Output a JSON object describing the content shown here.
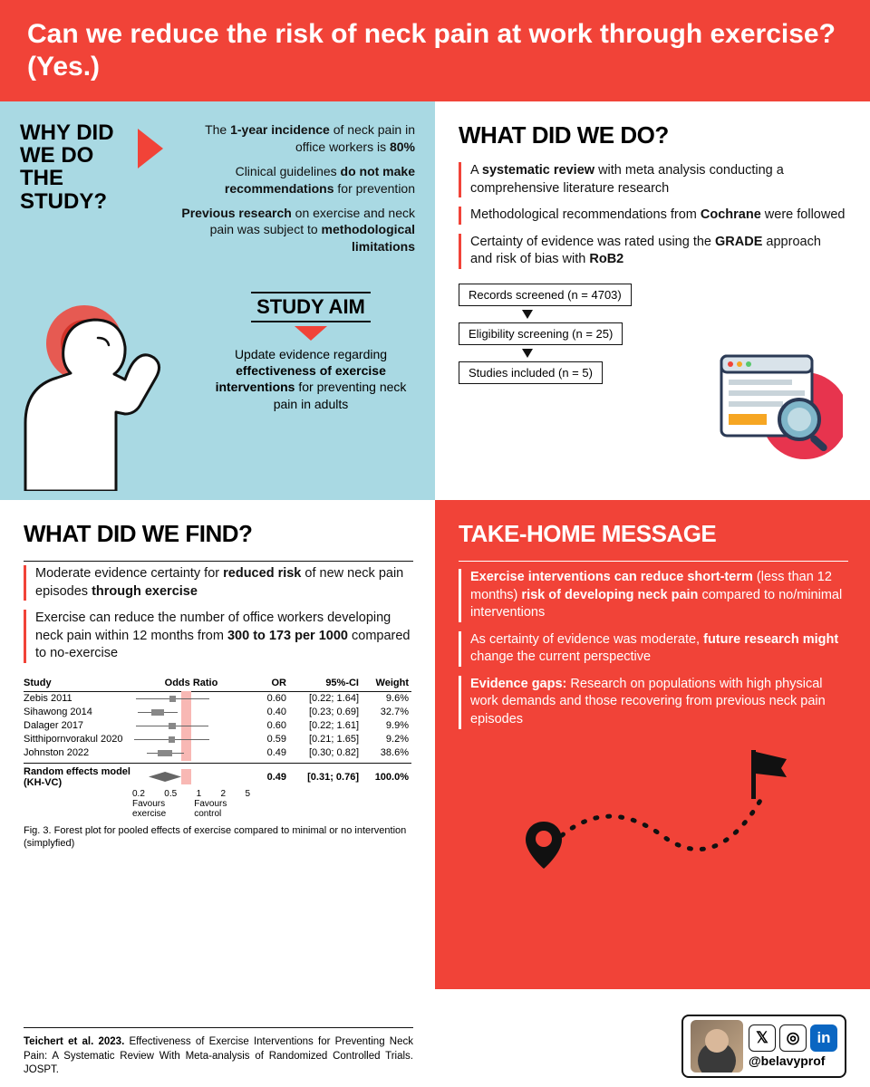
{
  "colors": {
    "red": "#f14338",
    "cyan": "#a9d9e3",
    "white": "#ffffff",
    "pink_band": "#f8b8b4",
    "text": "#111111"
  },
  "header": {
    "title": "Can we reduce the risk of neck pain at work through exercise? (Yes.)"
  },
  "q1": {
    "title": "WHY DID WE DO THE STUDY?",
    "facts_html": [
      "The <b>1-year incidence</b> of neck pain in office workers is <b>80%</b>",
      "Clinical guidelines <b>do not make recommendations</b> for prevention",
      "<b>Previous research</b> on exercise and neck pain was subject to <b>methodological limitations</b>"
    ],
    "aim_title": "STUDY AIM",
    "aim_html": "Update evidence regarding <b>effectiveness of exercise interventions</b> for preventing neck pain in adults"
  },
  "q2": {
    "title": "WHAT DID WE DO?",
    "points_html": [
      "A <b>systematic review</b> with meta analysis conducting a comprehensive literature research",
      "Methodological recommendations from <b>Cochrane</b> were followed",
      "Certainty of evidence was rated using the <b>GRADE</b> approach and risk of bias with <b>RoB2</b>"
    ],
    "flow": [
      "Records screened (n = 4703)",
      "Eligibility screening (n = 25)",
      "Studies included (n = 5)"
    ]
  },
  "q3": {
    "title": "WHAT DID WE FIND?",
    "points_html": [
      "Moderate evidence certainty for <b>reduced risk</b> of new neck pain episodes <b>through exercise</b>",
      "Exercise can reduce the number of office workers developing neck pain within 12 months from <b>300 to 173 per 1000</b> compared to no-exercise"
    ],
    "forest": {
      "columns": [
        "Study",
        "Odds Ratio",
        "OR",
        "95%-CI",
        "Weight"
      ],
      "band_or_range": [
        0.76,
        1.0
      ],
      "axis_ticks": [
        "0.2",
        "0.5",
        "1",
        "2",
        "5"
      ],
      "axis_labels": [
        "Favours exercise",
        "Favours control"
      ],
      "rows": [
        {
          "study": "Zebis 2011",
          "or": 0.6,
          "ci": "[0.22; 1.64]",
          "wt": "9.6%",
          "lo": 0.22,
          "hi": 1.64
        },
        {
          "study": "Sihawong 2014",
          "or": 0.4,
          "ci": "[0.23; 0.69]",
          "wt": "32.7%",
          "lo": 0.23,
          "hi": 0.69
        },
        {
          "study": "Dalager 2017",
          "or": 0.6,
          "ci": "[0.22; 1.61]",
          "wt": "9.9%",
          "lo": 0.22,
          "hi": 1.61
        },
        {
          "study": "Sitthipornvorakul 2020",
          "or": 0.59,
          "ci": "[0.21; 1.65]",
          "wt": "9.2%",
          "lo": 0.21,
          "hi": 1.65
        },
        {
          "study": "Johnston 2022",
          "or": 0.49,
          "ci": "[0.30; 0.82]",
          "wt": "38.6%",
          "lo": 0.3,
          "hi": 0.82
        }
      ],
      "summary": {
        "label": "Random effects model (KH-VC)",
        "or": 0.49,
        "ci": "[0.31; 0.76]",
        "wt": "100.0%",
        "lo": 0.31,
        "hi": 0.76
      },
      "caption": "Fig. 3. Forest plot for pooled effects of exercise compared to minimal or no intervention (simplyfied)"
    }
  },
  "q4": {
    "title": "TAKE-HOME MESSAGE",
    "points_html": [
      "<b>Exercise interventions can reduce short-term</b> (less than 12 months) <b>risk of developing neck pain</b> compared to no/minimal interventions",
      "As certainty of evidence was moderate, <b>future research might</b> change the current perspective",
      "<b>Evidence gaps:</b> Research on populations with high physical work demands and those recovering from previous neck pain episodes"
    ]
  },
  "footer": {
    "citation_html": "<b>Teichert et al. 2023.</b> Effectiveness of Exercise Interventions for Preventing Neck Pain: A Systematic Review With Meta-analysis of Randomized Controlled Trials. JOSPT.",
    "handle": "@belavyprof",
    "socials": [
      "x-icon",
      "instagram-icon",
      "linkedin-icon"
    ]
  }
}
